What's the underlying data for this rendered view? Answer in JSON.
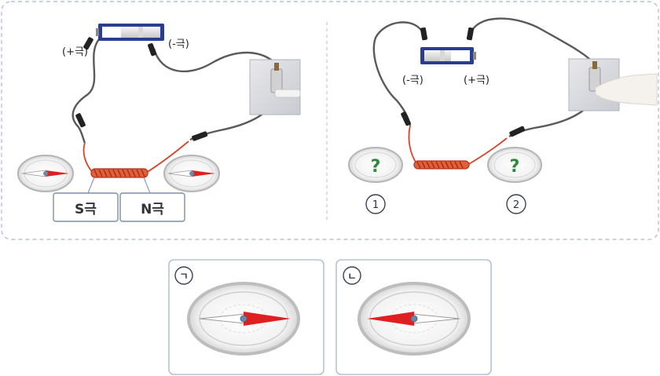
{
  "experiment_a": {
    "battery_pos_label": "(+극)",
    "battery_neg_label": "(-극)",
    "coil_left_pole": "S극",
    "coil_right_pole": "N극"
  },
  "experiment_b": {
    "battery_neg_label": "(-극)",
    "battery_pos_label": "(+극)",
    "compass_unknown_1": "?",
    "compass_unknown_2": "?",
    "marker_1": "1",
    "marker_2": "2"
  },
  "options": [
    {
      "marker": "ㄱ",
      "needle_direction": "right"
    },
    {
      "marker": "ㄴ",
      "needle_direction": "left"
    }
  ],
  "colors": {
    "needle_red": "#e02020",
    "coil_red": "#d8442a",
    "wire_gray": "#555555",
    "battery_blue": "#2a3e8f",
    "question_green": "#2e8a3a"
  }
}
